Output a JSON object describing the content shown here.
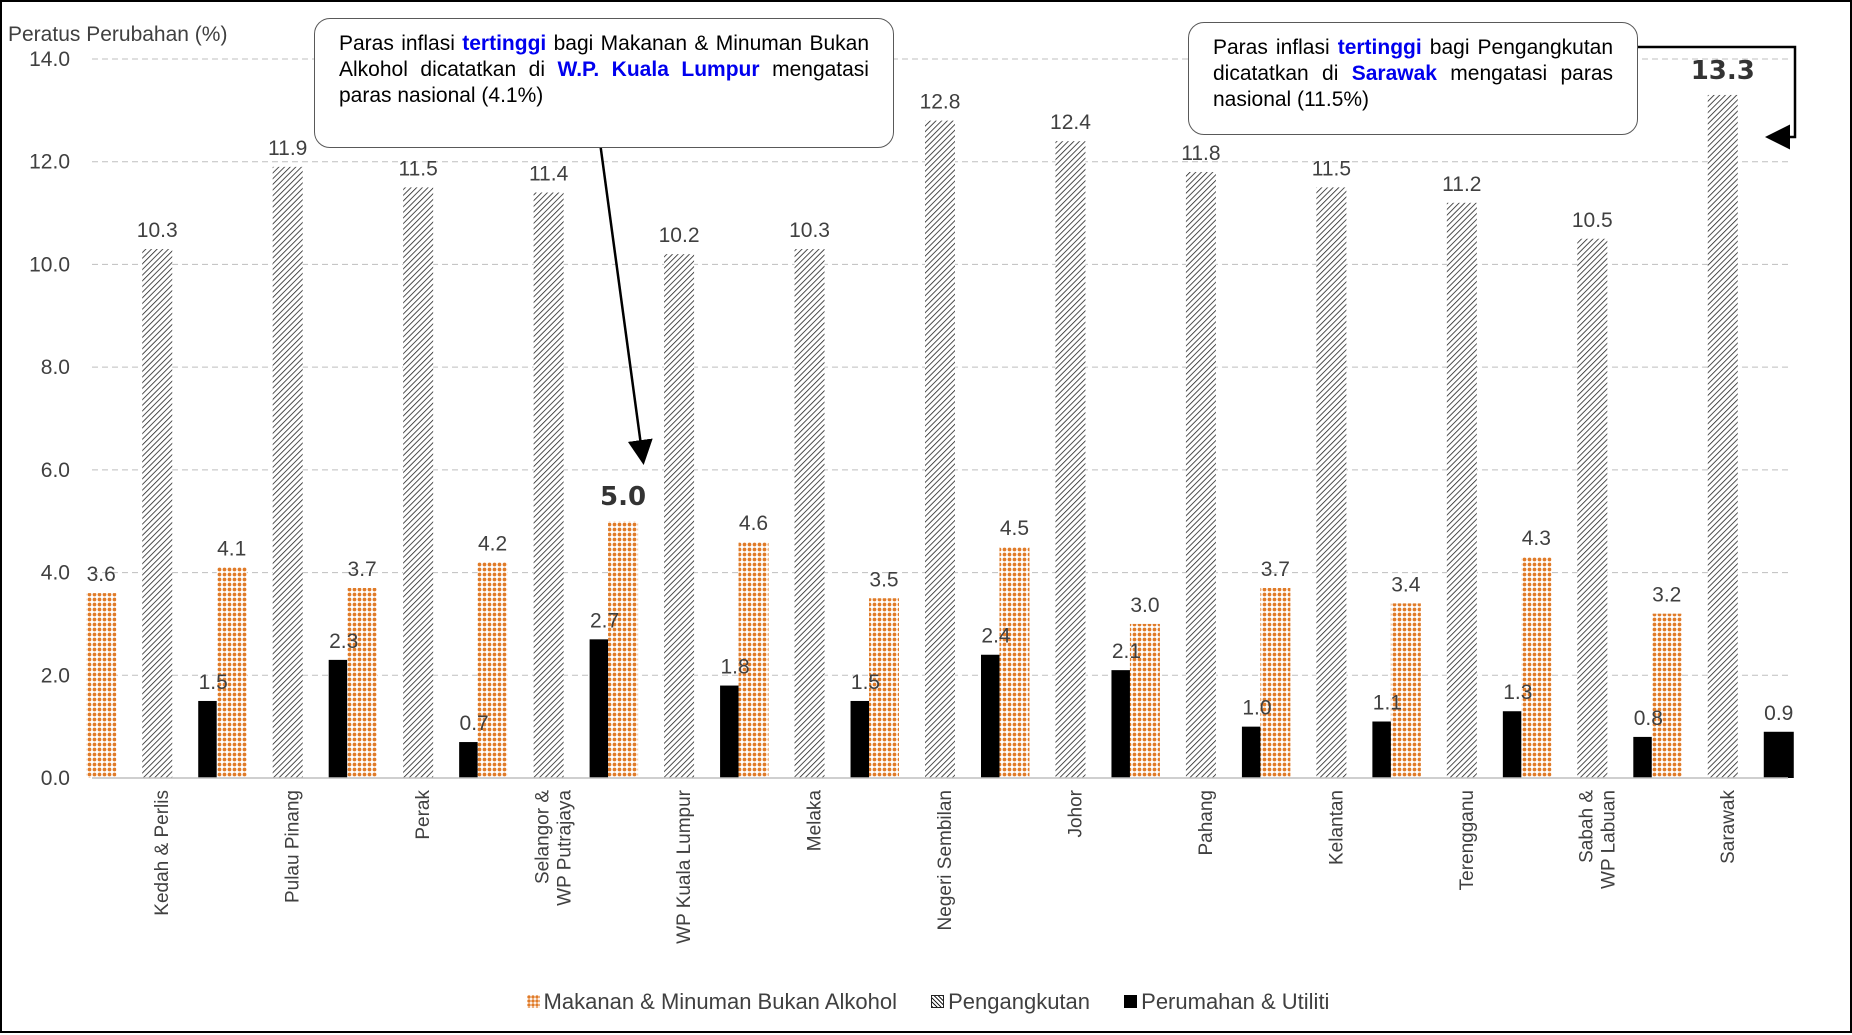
{
  "chart_data": {
    "type": "bar",
    "ylabel": "Peratus Perubahan (%)",
    "ylim": [
      0,
      14
    ],
    "ytick_step": 2,
    "ytick_labels": [
      "0.0",
      "2.0",
      "4.0",
      "6.0",
      "8.0",
      "10.0",
      "12.0",
      "14.0"
    ],
    "grid": "horizontal dashed",
    "legend_position": "bottom",
    "categories": [
      "Kedah & Perlis",
      "Pulau Pinang",
      "Perak",
      "Selangor &\nWP Putrajaya",
      "WP Kuala Lumpur",
      "Melaka",
      "Negeri Sembilan",
      "Johor",
      "Pahang",
      "Kelantan",
      "Terengganu",
      "Sabah &\nWP Labuan",
      "Sarawak"
    ],
    "series": [
      {
        "name": "Makanan & Minuman Bukan Alkohol",
        "color": "#e07b28",
        "pattern": "dotted",
        "values": [
          3.6,
          4.1,
          3.7,
          4.2,
          5.0,
          4.6,
          3.5,
          4.5,
          3.0,
          3.7,
          3.4,
          4.3,
          3.2
        ],
        "labels": [
          "3.6",
          "4.1",
          "3.7",
          "4.2",
          "5.0",
          "4.6",
          "3.5",
          "4.5",
          "3.0",
          "3.7",
          "3.4",
          "4.3",
          "3.2"
        ]
      },
      {
        "name": "Pengangkutan",
        "color": "#222222",
        "pattern": "diagonal-hatch",
        "values": [
          10.3,
          11.9,
          11.5,
          11.4,
          10.2,
          10.3,
          12.8,
          12.4,
          11.8,
          11.5,
          11.2,
          10.5,
          13.3
        ],
        "labels": [
          "10.3",
          "11.9",
          "11.5",
          "11.4",
          "10.2",
          "10.3",
          "12.8",
          "12.4",
          "11.8",
          "11.5",
          "11.2",
          "10.5",
          "13.3"
        ]
      },
      {
        "name": "Perumahan & Utiliti",
        "color": "#000000",
        "pattern": "solid",
        "values": [
          1.5,
          2.3,
          0.7,
          2.7,
          1.8,
          1.5,
          2.4,
          2.1,
          1.0,
          1.1,
          1.3,
          0.8,
          0.9
        ],
        "labels": [
          "1.5",
          "2.3",
          "0.7",
          "2.7",
          "1.8",
          "1.5",
          "2.4",
          "2.1",
          "1.0",
          "1.1",
          "1.3",
          "0.8",
          "0.9"
        ]
      }
    ],
    "emphasized": [
      {
        "series": 0,
        "category": 4
      },
      {
        "series": 1,
        "category": 12
      }
    ]
  },
  "callouts": {
    "left": {
      "part1": "Paras inflasi ",
      "hl1": "tertinggi",
      "part2": " bagi Makanan & Minuman Bukan Alkohol dicatatkan di ",
      "hl2": "W.P. Kuala Lumpur",
      "part3": " mengatasi paras nasional (4.1%)"
    },
    "right": {
      "part1": "Paras inflasi ",
      "hl1": "tertinggi",
      "part2": " bagi Pengangkutan dicatatkan di ",
      "hl2": "Sarawak",
      "part3": " mengatasi paras nasional (11.5%)"
    }
  },
  "legend": {
    "items": [
      {
        "label": "Makanan & Minuman Bukan Alkohol",
        "icon": "dotted-orange-swatch"
      },
      {
        "label": "Pengangkutan",
        "icon": "hatched-swatch"
      },
      {
        "label": "Perumahan & Utiliti",
        "icon": "solid-black-swatch"
      }
    ]
  }
}
